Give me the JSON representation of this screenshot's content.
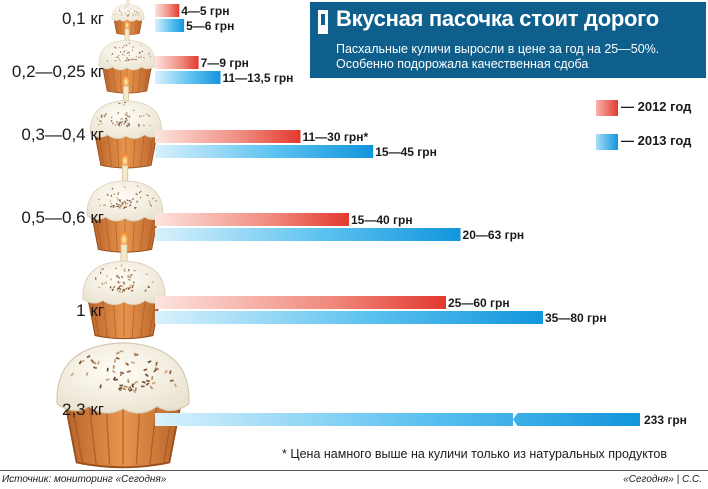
{
  "header": {
    "title": "Вкусная пасочка стоит дорого",
    "subtitle_line1": "Пасхальные куличи выросли в цене за год на 25—50%.",
    "subtitle_line2": "Особенно подорожала качественная сдоба"
  },
  "legend": [
    {
      "label": "— 2012 год",
      "color": "#e8433c"
    },
    {
      "label": "— 2013 год",
      "color": "#22a7e6"
    }
  ],
  "footnote": "* Цена намного выше на куличи только из натуральных продуктов",
  "source": "Источник: мониторинг «Сегодня»",
  "credit": "«Сегодня» | С.С.",
  "chart_data": {
    "type": "bar",
    "orientation": "horizontal",
    "categories": [
      "0,1 кг",
      "0,2—0,25 кг",
      "0,3—0,4 кг",
      "0,5—0,6 кг",
      "1 кг",
      "2,3 кг"
    ],
    "unit": "грн",
    "series": [
      {
        "name": "2012 год",
        "values": [
          5,
          9,
          30,
          40,
          60,
          null
        ],
        "labels": [
          "4—5 грн",
          "7—9 грн",
          "11—30 грн*",
          "15—40 грн",
          "25—60 грн",
          ""
        ]
      },
      {
        "name": "2013 год",
        "values": [
          6,
          13.5,
          45,
          63,
          80,
          233
        ],
        "labels": [
          "5—6 грн",
          "11—13,5 грн",
          "15—45 грн",
          "20—63 грн",
          "35—80 грн",
          "233 грн"
        ]
      }
    ],
    "axis_break": {
      "category": "2,3 кг"
    },
    "legend_position": "right",
    "grid": false
  }
}
